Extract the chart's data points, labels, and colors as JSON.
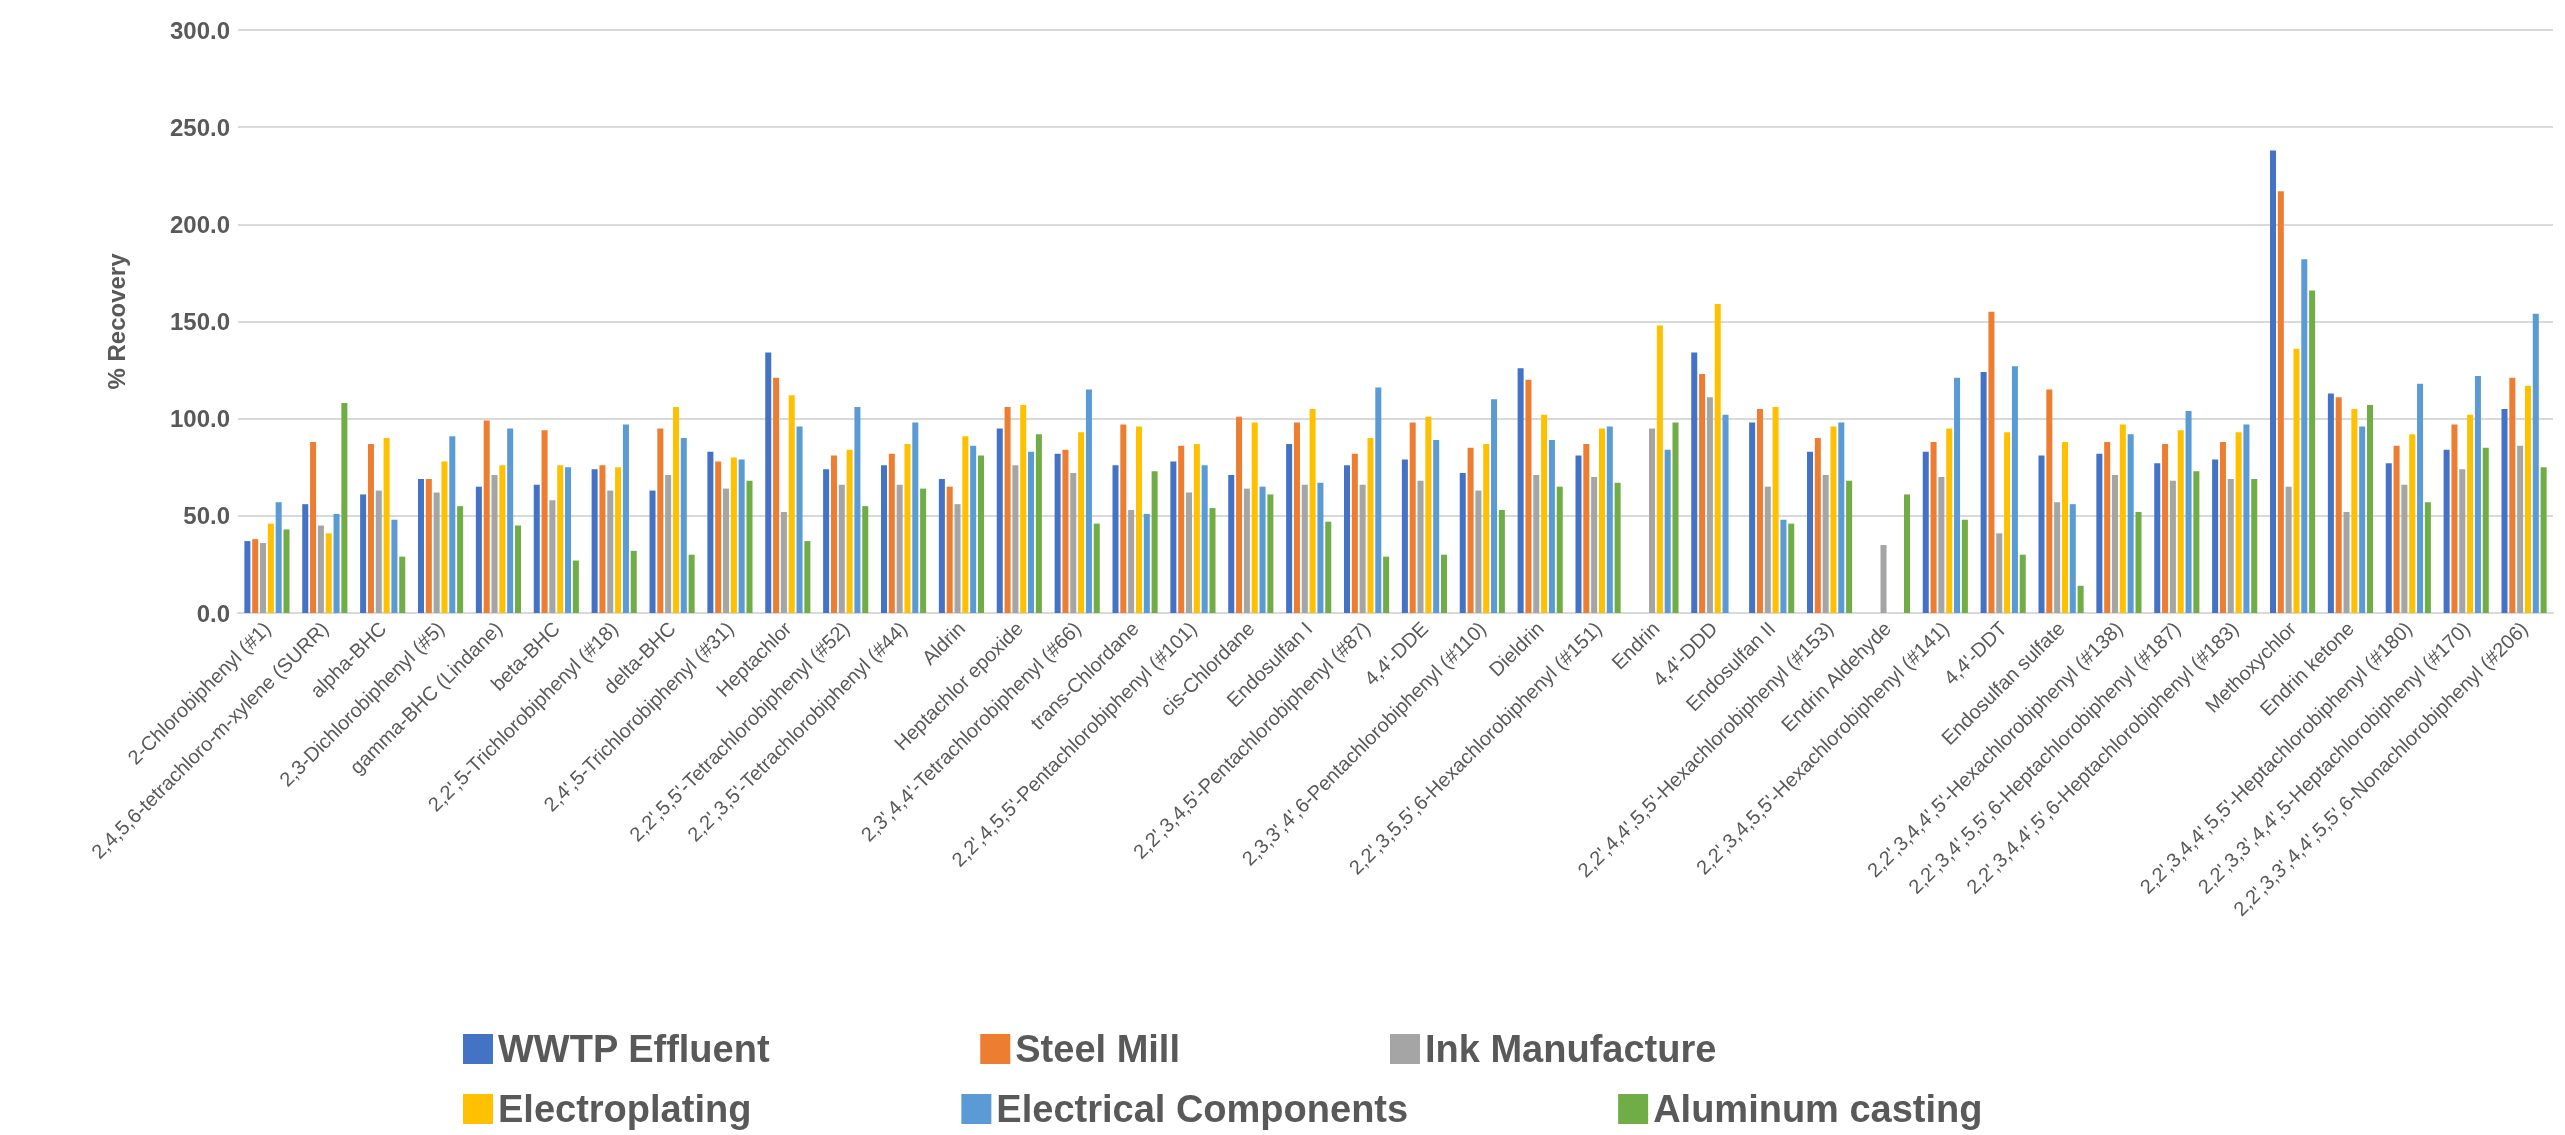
{
  "chart_data": {
    "type": "bar",
    "ylabel": "% Recovery",
    "categories": [
      "2-Chlorobiphenyl (#1)",
      "2,4,5,6-tetrachloro-m-xylene (SURR)",
      "alpha-BHC",
      "2,3-Dichlorobiphenyl (#5)",
      "gamma-BHC (Lindane)",
      "beta-BHC",
      "2,2',5-Trichlorobiphenyl (#18)",
      "delta-BHC",
      "2,4',5-Trichlorobiphenyl (#31)",
      "Heptachlor",
      "2,2',5,5'-Tetrachlorobiphenyl (#52)",
      "2,2',3,5'-Tetrachlorobiphenyl (#44)",
      "Aldrin",
      "Heptachlor epoxide",
      "2,3',4,4'-Tetrachlorobiphenyl (#66)",
      "trans-Chlordane",
      "2,2',4,5,5'-Pentachlorobiphenyl (#101)",
      "cis-Chlordane",
      "Endosulfan I",
      "2,2',3,4,5'-Pentachlorobiphenyl (#87)",
      "4,4'-DDE",
      "2,3,3',4',6-Pentachlorobiphenyl (#110)",
      "Dieldrin",
      "2,2',3,5,5',6-Hexachlorobiphenyl (#151)",
      "Endrin",
      "4,4'-DDD",
      "Endosulfan II",
      "2,2',4,4',5,5'-Hexachlorobiphenyl (#153)",
      "Endrin Aldehyde",
      "2,2',3,4,5,5'-Hexachlorobiphenyl (#141)",
      "4,4'-DDT",
      "Endosulfan sulfate",
      "2,2',3,4,4',5'-Hexachlorobiphenyl (#138)",
      "2,2',3,4',5,5',6-Heptachlorobiphenyl (#187)",
      "2,2',3,4,4',5',6-Heptachlorobiphenyl (#183)",
      "Methoxychlor",
      "Endrin ketone",
      "2,2',3,4,4',5,5'-Heptachlorobiphenyl (#180)",
      "2,2',3,3',4,4',5-Heptachlorobiphenyl (#170)",
      "2,2',3,3',4,4',5,5',6-Nonachlorobiphenyl (#206)"
    ],
    "series": [
      {
        "name": "WWTP Effluent",
        "color": "#4472c4",
        "values": [
          37,
          56,
          61,
          69,
          65,
          66,
          74,
          63,
          83,
          134,
          74,
          76,
          69,
          95,
          82,
          76,
          78,
          71,
          87,
          76,
          79,
          72,
          126,
          81,
          null,
          134,
          98,
          83,
          null,
          83,
          124,
          81,
          82,
          77,
          79,
          238,
          113,
          77,
          84,
          105
        ]
      },
      {
        "name": "Steel Mill",
        "color": "#ed7d31",
        "values": [
          38,
          88,
          87,
          69,
          99,
          94,
          76,
          95,
          78,
          121,
          81,
          82,
          65,
          106,
          84,
          97,
          86,
          101,
          98,
          82,
          98,
          85,
          120,
          87,
          null,
          123,
          105,
          90,
          null,
          88,
          155,
          115,
          88,
          87,
          88,
          217,
          111,
          86,
          97,
          121
        ]
      },
      {
        "name": "Ink Manufacture",
        "color": "#a5a5a5",
        "values": [
          36,
          45,
          63,
          62,
          71,
          58,
          63,
          71,
          64,
          52,
          66,
          66,
          56,
          76,
          72,
          53,
          62,
          64,
          66,
          66,
          68,
          63,
          71,
          70,
          95,
          111,
          65,
          71,
          35,
          70,
          41,
          57,
          71,
          68,
          69,
          65,
          52,
          66,
          74,
          86
        ]
      },
      {
        "name": "Electroplating",
        "color": "#ffc000",
        "values": [
          46,
          41,
          90,
          78,
          76,
          76,
          75,
          106,
          80,
          112,
          84,
          87,
          91,
          107,
          93,
          96,
          87,
          98,
          105,
          90,
          101,
          87,
          102,
          95,
          148,
          159,
          106,
          96,
          null,
          95,
          93,
          88,
          97,
          94,
          93,
          136,
          105,
          92,
          102,
          117
        ]
      },
      {
        "name": "Electrical Components",
        "color": "#5b9bd5",
        "values": [
          57,
          51,
          48,
          91,
          95,
          75,
          97,
          90,
          79,
          96,
          106,
          98,
          86,
          83,
          115,
          51,
          76,
          65,
          67,
          116,
          89,
          110,
          89,
          96,
          84,
          102,
          48,
          98,
          null,
          121,
          127,
          56,
          92,
          104,
          97,
          182,
          96,
          118,
          122,
          154
        ]
      },
      {
        "name": "Aluminum casting",
        "color": "#70ad47",
        "values": [
          43,
          108,
          29,
          55,
          45,
          27,
          32,
          30,
          68,
          37,
          55,
          64,
          81,
          92,
          46,
          73,
          54,
          61,
          47,
          29,
          30,
          53,
          65,
          67,
          98,
          0,
          46,
          68,
          61,
          48,
          30,
          14,
          52,
          73,
          69,
          166,
          107,
          57,
          85,
          75
        ]
      }
    ],
    "ylim": [
      0,
      300
    ],
    "yticks": [
      {
        "value": 0,
        "label": "0.0"
      },
      {
        "value": 50,
        "label": "50.0"
      },
      {
        "value": 100,
        "label": "100.0"
      },
      {
        "value": 150,
        "label": "150.0"
      },
      {
        "value": 200,
        "label": "200.0"
      },
      {
        "value": 250,
        "label": "250.0"
      },
      {
        "value": 300,
        "label": "300.0"
      }
    ],
    "grid": "y",
    "legend": "bottom"
  }
}
